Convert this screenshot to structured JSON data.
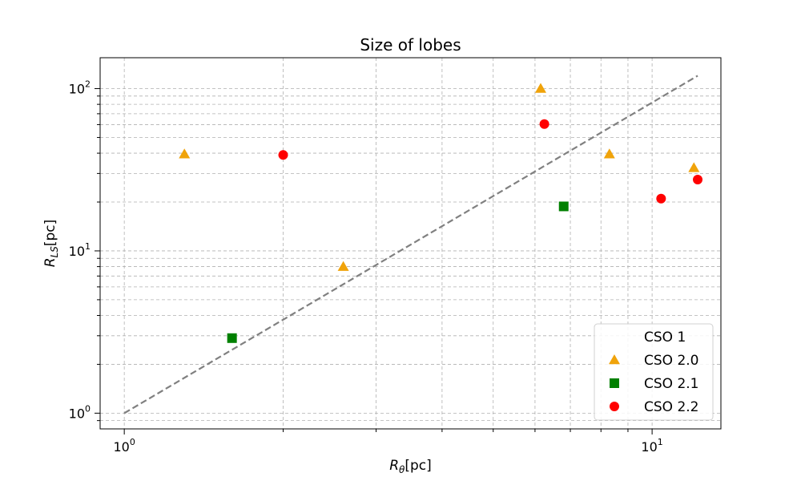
{
  "chart_data": {
    "type": "scatter",
    "title": "Size of lobes",
    "xlabel_main": "R",
    "xlabel_sub": "θ",
    "xlabel_unit": "[pc]",
    "ylabel_main": "R",
    "ylabel_sub": "LS",
    "ylabel_unit": "[pc]",
    "xscale": "log",
    "yscale": "log",
    "xlim": [
      0.9,
      13.5
    ],
    "ylim": [
      0.8,
      155
    ],
    "x_ticks": [
      {
        "value": 1,
        "base": "10",
        "exp": "0"
      },
      {
        "value": 10,
        "base": "10",
        "exp": "1"
      }
    ],
    "y_ticks": [
      {
        "value": 1,
        "base": "10",
        "exp": "0"
      },
      {
        "value": 10,
        "base": "10",
        "exp": "1"
      },
      {
        "value": 100,
        "base": "10",
        "exp": "2"
      }
    ],
    "grid": true,
    "legend_position": "bottom-right",
    "reference_line": {
      "style": "dashed",
      "color": "#808080",
      "points": [
        [
          1,
          1
        ],
        [
          12.2,
          120
        ]
      ]
    },
    "series": [
      {
        "name": "CSO 1",
        "marker": "none",
        "color": "#ffffff",
        "points": []
      },
      {
        "name": "CSO 2.0",
        "marker": "triangle",
        "color": "#f0a30a",
        "points": [
          [
            1.3,
            39.5
          ],
          [
            2.6,
            8
          ],
          [
            6.15,
            100
          ],
          [
            8.3,
            39.5
          ],
          [
            12,
            32.5
          ]
        ]
      },
      {
        "name": "CSO 2.1",
        "marker": "square",
        "color": "#008000",
        "points": [
          [
            1.6,
            2.9
          ],
          [
            6.8,
            18.8
          ]
        ]
      },
      {
        "name": "CSO 2.2",
        "marker": "circle",
        "color": "#ff0000",
        "points": [
          [
            2.0,
            39
          ],
          [
            6.25,
            60.5
          ],
          [
            10.4,
            21
          ],
          [
            12.2,
            27.5
          ]
        ]
      }
    ]
  }
}
